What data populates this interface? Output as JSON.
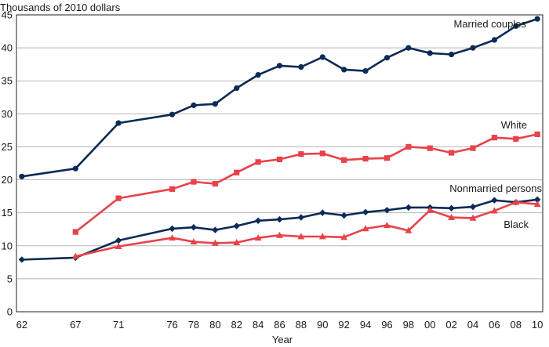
{
  "chart_data": {
    "type": "line",
    "title": "",
    "ylabel": "Thousands of 2010 dollars",
    "xlabel": "Year",
    "ylim": [
      0,
      45
    ],
    "yticks": [
      0,
      5,
      10,
      15,
      20,
      25,
      30,
      35,
      40,
      45
    ],
    "xlim": [
      1961.5,
      2010.5
    ],
    "x": [
      1962,
      1967,
      1971,
      1976,
      1978,
      1980,
      1982,
      1984,
      1986,
      1988,
      1990,
      1992,
      1994,
      1996,
      1998,
      2000,
      2002,
      2004,
      2006,
      2008,
      2010
    ],
    "xtick_labels": [
      "62",
      "67",
      "71",
      "76",
      "78",
      "80",
      "82",
      "84",
      "86",
      "88",
      "90",
      "92",
      "94",
      "96",
      "98",
      "00",
      "02",
      "04",
      "06",
      "08",
      "10"
    ],
    "grid": "horizontal",
    "colors": {
      "navy": "#0b2a55",
      "red": "#e8424a"
    },
    "series": [
      {
        "name": "Married couples",
        "color": "#0b2a55",
        "marker": "circle",
        "values": [
          20.5,
          21.7,
          28.6,
          29.9,
          31.3,
          31.5,
          33.9,
          35.9,
          37.3,
          37.1,
          38.6,
          36.7,
          36.5,
          38.5,
          40.0,
          39.2,
          39.0,
          40.0,
          41.2,
          43.3,
          44.4
        ]
      },
      {
        "name": "White",
        "color": "#e8424a",
        "marker": "square",
        "values": [
          null,
          12.1,
          17.2,
          18.6,
          19.7,
          19.4,
          21.1,
          22.7,
          23.1,
          23.9,
          24.0,
          23.0,
          23.2,
          23.3,
          25.0,
          24.8,
          24.1,
          24.8,
          26.4,
          26.2,
          26.9
        ]
      },
      {
        "name": "Nonmarried persons",
        "color": "#0b2a55",
        "marker": "diamond",
        "values": [
          7.9,
          8.2,
          10.8,
          12.6,
          12.8,
          12.4,
          13.0,
          13.8,
          14.0,
          14.3,
          15.0,
          14.6,
          15.1,
          15.4,
          15.8,
          15.8,
          15.7,
          15.9,
          16.9,
          16.6,
          17.0
        ]
      },
      {
        "name": "Black",
        "color": "#e8424a",
        "marker": "triangle",
        "values": [
          null,
          8.4,
          9.9,
          11.2,
          10.6,
          10.4,
          10.5,
          11.2,
          11.6,
          11.4,
          11.4,
          11.3,
          12.6,
          13.1,
          12.3,
          15.4,
          14.3,
          14.2,
          15.3,
          16.6,
          16.3
        ]
      }
    ]
  }
}
